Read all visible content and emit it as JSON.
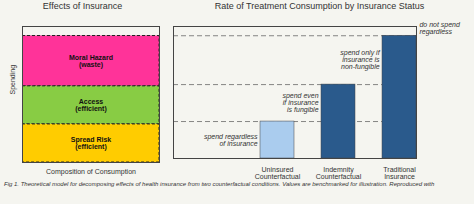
{
  "chart_data": [
    {
      "type": "stacked_box",
      "title": "Effects of Insurance",
      "xlabel": "Composition of Consumption",
      "ylabel": "Spending",
      "boxes": [
        {
          "label": "Moral Hazard\n(waste)",
          "color": "#FF3399",
          "bottom": 0.56,
          "top": 0.93
        },
        {
          "label": "Access\n(efficient)",
          "color": "#88CC44",
          "bottom": 0.28,
          "top": 0.56
        },
        {
          "label": "Spread Risk\n(efficient)",
          "color": "#FFCC00",
          "bottom": 0.0,
          "top": 0.28
        }
      ],
      "dashed_levels": [
        0.93,
        0.56,
        0.28
      ],
      "xlim": [
        0,
        1
      ],
      "ylim": [
        0,
        1.0
      ],
      "xticks": [],
      "yticks": [],
      "tick_labels": false
    },
    {
      "type": "bar",
      "title": "Rate of Treatment Consumption by Insurance Status",
      "categories": [
        "Uninsured\nCounterfactual",
        "Indemnity\nCounterfactual",
        "Traditional\nInsurance"
      ],
      "values": [
        0.28,
        0.56,
        0.93
      ],
      "colors": [
        "#AACCEE",
        "#2A5A8C",
        "#2A5A8C"
      ],
      "dashed_levels": [
        0.93,
        0.56,
        0.28
      ],
      "annotations": [
        "spend regardless\nof insurance",
        "spend even\nif insurance\nis fungible",
        "spend only if\ninsurance is\nnon-fungible",
        "do not spend\nregardless"
      ],
      "ylim": [
        0,
        1.0
      ],
      "yticks": [],
      "tick_labels": "x",
      "caption": "Fig 1.  Theoretical model for decomposing effects of health insurance from two counterfactual conditions. Values are benchmarked for illustration. Reproduced with"
    }
  ]
}
